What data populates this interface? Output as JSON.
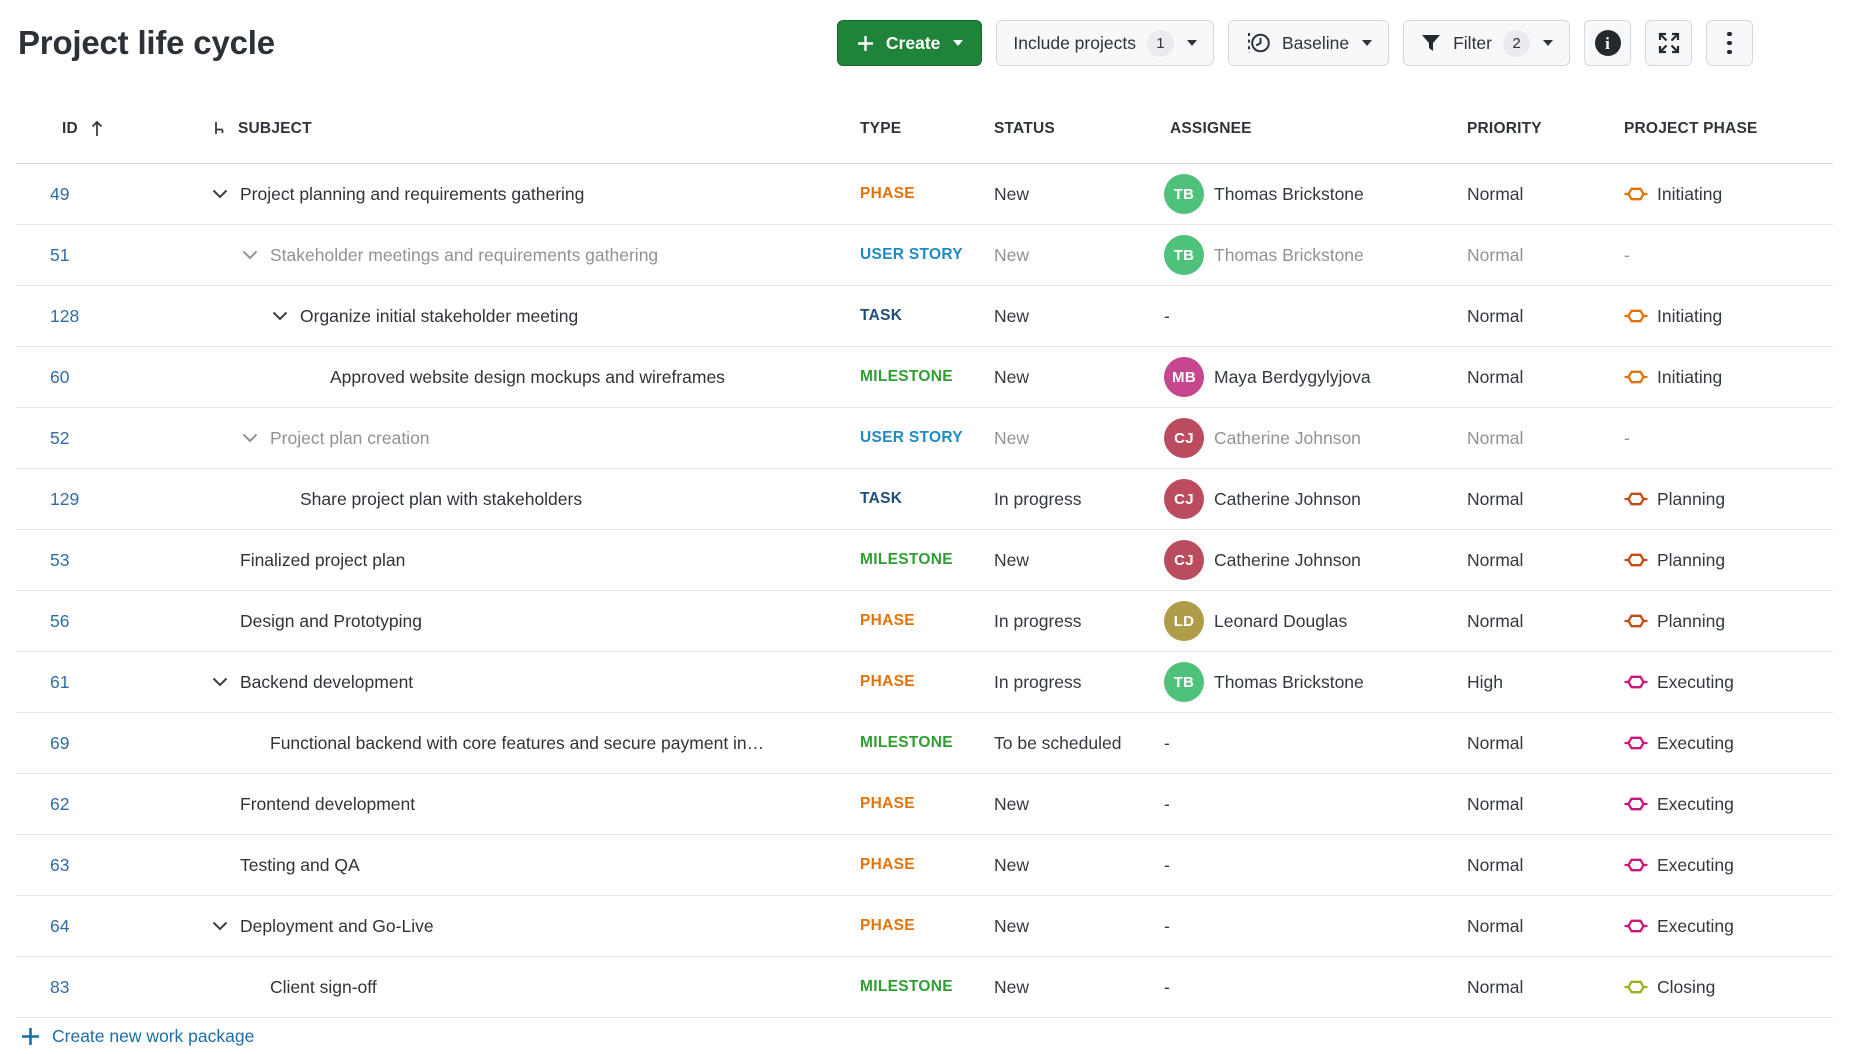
{
  "page": {
    "title": "Project life cycle"
  },
  "toolbar": {
    "create_label": "Create",
    "include_projects_label": "Include projects",
    "include_projects_count": "1",
    "baseline_label": "Baseline",
    "filter_label": "Filter",
    "filter_count": "2"
  },
  "icons": {
    "create": "plus-icon",
    "baseline": "clock-with-dashed-line-icon",
    "filter": "funnel-icon",
    "info": "info-circle-icon",
    "expand": "fullscreen-arrows-icon",
    "more": "kebab-menu-icon",
    "sort": "arrow-up-icon",
    "hierarchy": "hierarchy-icon",
    "collapse": "chevron-down-icon",
    "project_phase": "gate-hexagon-icon"
  },
  "colors": {
    "accent_green": "#1f8339",
    "link_blue": "#1c6ea4",
    "muted_text": "#8f9396"
  },
  "table": {
    "empty_value": "-",
    "columns": {
      "id": "ID",
      "subject": "SUBJECT",
      "type": "TYPE",
      "status": "STATUS",
      "assignee": "ASSIGNEE",
      "priority": "PRIORITY",
      "phase": "PROJECT PHASE"
    },
    "type_colors": {
      "PHASE": "#e0740b",
      "USER STORY": "#1e8bc3",
      "TASK": "#1e4e79",
      "MILESTONE": "#2f9e31"
    },
    "rows": [
      {
        "id": "49",
        "subject": "Project planning and requirements gathering",
        "level": 0,
        "chevron": true,
        "muted": false,
        "type": "PHASE",
        "status": "New",
        "assignee": {
          "initials": "TB",
          "name": "Thomas Brickstone",
          "color": "#4ec17b"
        },
        "priority": "Normal",
        "phase": {
          "label": "Initiating",
          "color": "#e0740b"
        }
      },
      {
        "id": "51",
        "subject": "Stakeholder meetings and requirements gathering",
        "level": 1,
        "chevron": true,
        "muted": true,
        "type": "USER STORY",
        "status": "New",
        "assignee": {
          "initials": "TB",
          "name": "Thomas Brickstone",
          "color": "#4ec17b"
        },
        "priority": "Normal",
        "phase": null
      },
      {
        "id": "128",
        "subject": "Organize initial stakeholder meeting",
        "level": 2,
        "chevron": true,
        "muted": false,
        "type": "TASK",
        "status": "New",
        "assignee": null,
        "priority": "Normal",
        "phase": {
          "label": "Initiating",
          "color": "#e0740b"
        }
      },
      {
        "id": "60",
        "subject": "Approved website design mockups and wireframes",
        "level": 3,
        "chevron": false,
        "muted": false,
        "type": "MILESTONE",
        "status": "New",
        "assignee": {
          "initials": "MB",
          "name": "Maya Berdygylyjova",
          "color": "#c6478d"
        },
        "priority": "Normal",
        "phase": {
          "label": "Initiating",
          "color": "#e0740b"
        }
      },
      {
        "id": "52",
        "subject": "Project plan creation",
        "level": 1,
        "chevron": true,
        "muted": true,
        "type": "USER STORY",
        "status": "New",
        "assignee": {
          "initials": "CJ",
          "name": "Catherine Johnson",
          "color": "#bb4b5f"
        },
        "priority": "Normal",
        "phase": null
      },
      {
        "id": "129",
        "subject": "Share project plan with stakeholders",
        "level": 2,
        "chevron": false,
        "muted": false,
        "type": "TASK",
        "status": "In progress",
        "assignee": {
          "initials": "CJ",
          "name": "Catherine Johnson",
          "color": "#bb4b5f"
        },
        "priority": "Normal",
        "phase": {
          "label": "Planning",
          "color": "#c64a12"
        }
      },
      {
        "id": "53",
        "subject": "Finalized project plan",
        "level": 0,
        "chevron": false,
        "muted": false,
        "type": "MILESTONE",
        "status": "New",
        "assignee": {
          "initials": "CJ",
          "name": "Catherine Johnson",
          "color": "#bb4b5f"
        },
        "priority": "Normal",
        "phase": {
          "label": "Planning",
          "color": "#c64a12"
        }
      },
      {
        "id": "56",
        "subject": "Design and Prototyping",
        "level": 0,
        "chevron": false,
        "muted": false,
        "type": "PHASE",
        "status": "In progress",
        "assignee": {
          "initials": "LD",
          "name": "Leonard Douglas",
          "color": "#af9c49"
        },
        "priority": "Normal",
        "phase": {
          "label": "Planning",
          "color": "#c64a12"
        }
      },
      {
        "id": "61",
        "subject": "Backend development",
        "level": 0,
        "chevron": true,
        "muted": false,
        "type": "PHASE",
        "status": "In progress",
        "assignee": {
          "initials": "TB",
          "name": "Thomas Brickstone",
          "color": "#4ec17b"
        },
        "priority": "High",
        "phase": {
          "label": "Executing",
          "color": "#cc1677"
        }
      },
      {
        "id": "69",
        "subject": "Functional backend with core features and secure payment in…",
        "level": 1,
        "chevron": false,
        "muted": false,
        "type": "MILESTONE",
        "status": "To be scheduled",
        "assignee": null,
        "priority": "Normal",
        "phase": {
          "label": "Executing",
          "color": "#cc1677"
        }
      },
      {
        "id": "62",
        "subject": "Frontend development",
        "level": 0,
        "chevron": false,
        "muted": false,
        "type": "PHASE",
        "status": "New",
        "assignee": null,
        "priority": "Normal",
        "phase": {
          "label": "Executing",
          "color": "#cc1677"
        }
      },
      {
        "id": "63",
        "subject": "Testing and QA",
        "level": 0,
        "chevron": false,
        "muted": false,
        "type": "PHASE",
        "status": "New",
        "assignee": null,
        "priority": "Normal",
        "phase": {
          "label": "Executing",
          "color": "#cc1677"
        }
      },
      {
        "id": "64",
        "subject": "Deployment and Go-Live",
        "level": 0,
        "chevron": true,
        "muted": false,
        "type": "PHASE",
        "status": "New",
        "assignee": null,
        "priority": "Normal",
        "phase": {
          "label": "Executing",
          "color": "#cc1677"
        }
      },
      {
        "id": "83",
        "subject": "Client sign-off",
        "level": 1,
        "chevron": false,
        "muted": false,
        "type": "MILESTONE",
        "status": "New",
        "assignee": null,
        "priority": "Normal",
        "phase": {
          "label": "Closing",
          "color": "#9cb31b"
        }
      }
    ]
  },
  "footer": {
    "create_link": "Create new work package"
  }
}
